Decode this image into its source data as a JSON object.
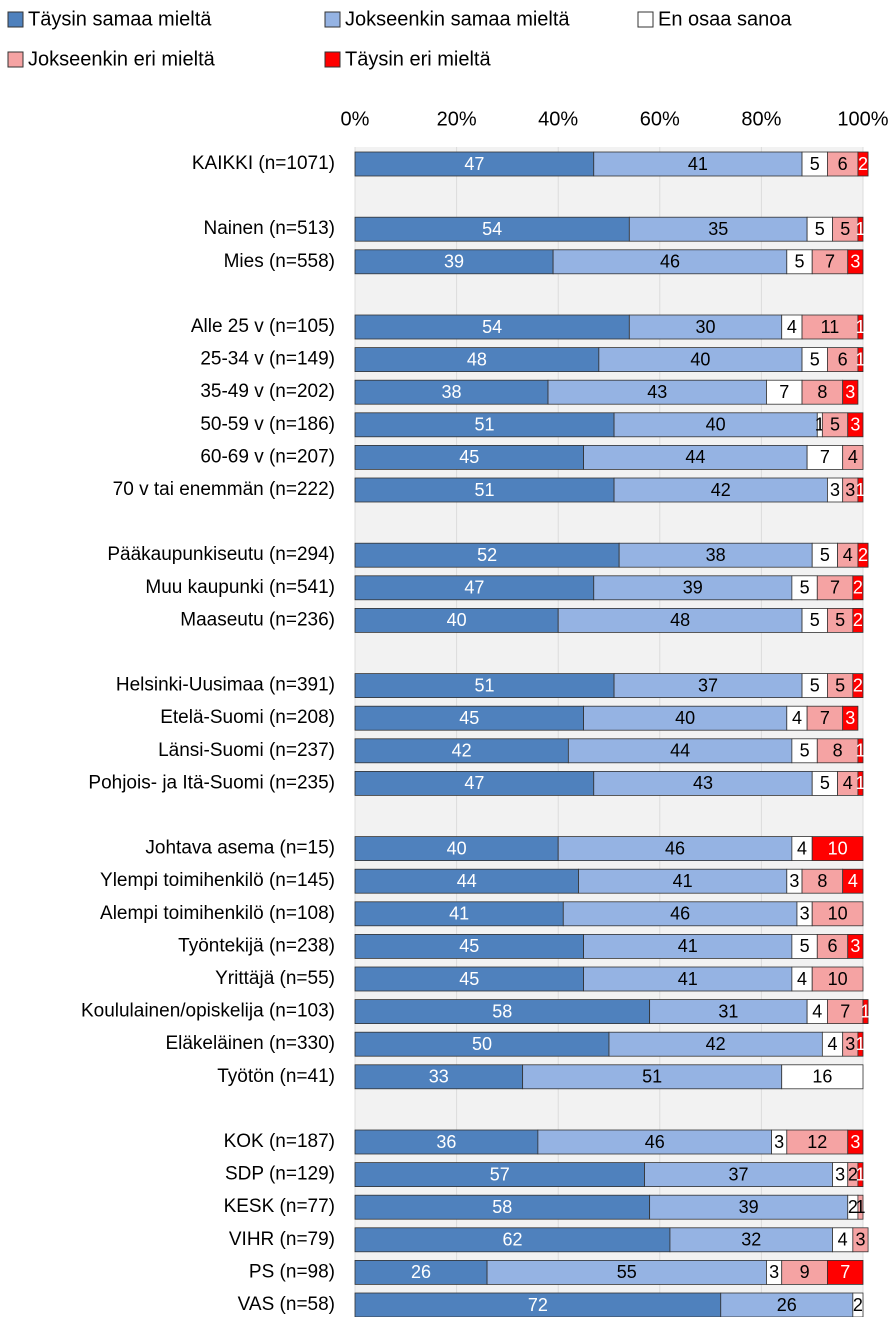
{
  "chart_data": {
    "type": "stacked-bar-horizontal",
    "categories": [
      "KAIKKI (n=1071)",
      null,
      "Nainen (n=513)",
      "Mies (n=558)",
      null,
      "Alle 25 v (n=105)",
      "25-34 v (n=149)",
      "35-49 v (n=202)",
      "50-59 v (n=186)",
      "60-69 v (n=207)",
      "70 v tai enemmän (n=222)",
      null,
      "Pääkaupunkiseutu (n=294)",
      "Muu kaupunki (n=541)",
      "Maaseutu (n=236)",
      null,
      "Helsinki-Uusimaa (n=391)",
      "Etelä-Suomi (n=208)",
      "Länsi-Suomi (n=237)",
      "Pohjois- ja Itä-Suomi (n=235)",
      null,
      "Johtava asema (n=15)",
      "Ylempi toimihenkilö (n=145)",
      "Alempi toimihenkilö (n=108)",
      "Työntekijä (n=238)",
      "Yrittäjä (n=55)",
      "Koululainen/opiskelija (n=103)",
      "Eläkeläinen (n=330)",
      "Työtön (n=41)",
      null,
      "KOK (n=187)",
      "SDP (n=129)",
      "KESK (n=77)",
      "VIHR (n=79)",
      "PS (n=98)",
      "VAS (n=58)"
    ],
    "series": [
      {
        "name": "Täysin samaa mieltä",
        "color": "#4f81bd",
        "values": [
          47,
          null,
          54,
          39,
          null,
          54,
          48,
          38,
          51,
          45,
          51,
          null,
          52,
          47,
          40,
          null,
          51,
          45,
          42,
          47,
          null,
          40,
          44,
          41,
          45,
          45,
          58,
          50,
          33,
          null,
          36,
          57,
          58,
          62,
          26,
          72
        ]
      },
      {
        "name": "Jokseenkin samaa mieltä",
        "color": "#95b3e3",
        "values": [
          41,
          null,
          35,
          46,
          null,
          30,
          40,
          43,
          40,
          44,
          42,
          null,
          38,
          39,
          48,
          null,
          37,
          40,
          44,
          43,
          null,
          46,
          41,
          46,
          41,
          41,
          31,
          42,
          51,
          null,
          46,
          37,
          39,
          32,
          55,
          26
        ]
      },
      {
        "name": "En osaa sanoa",
        "color": "#ffffff",
        "values": [
          5,
          null,
          5,
          5,
          null,
          4,
          5,
          7,
          1,
          7,
          3,
          null,
          5,
          5,
          5,
          null,
          5,
          4,
          5,
          5,
          null,
          4,
          3,
          3,
          5,
          4,
          4,
          4,
          16,
          null,
          3,
          3,
          2,
          4,
          3,
          2
        ]
      },
      {
        "name": "Jokseenkin eri mieltä",
        "color": "#f5a3a3",
        "values": [
          6,
          null,
          5,
          7,
          null,
          11,
          6,
          8,
          5,
          4,
          3,
          null,
          4,
          7,
          5,
          null,
          5,
          7,
          8,
          4,
          null,
          0,
          8,
          10,
          6,
          10,
          7,
          3,
          0,
          null,
          12,
          2,
          1,
          3,
          9,
          0
        ]
      },
      {
        "name": "Täysin eri mieltä",
        "color": "#ff0000",
        "values": [
          2,
          null,
          1,
          3,
          null,
          1,
          1,
          3,
          3,
          0,
          1,
          null,
          2,
          2,
          2,
          null,
          2,
          3,
          1,
          1,
          null,
          10,
          4,
          0,
          3,
          0,
          1,
          1,
          0,
          null,
          3,
          1,
          0,
          0,
          7,
          0
        ]
      }
    ],
    "xlim": [
      0,
      100
    ],
    "xticks": [
      {
        "value": 0,
        "label": "0%"
      },
      {
        "value": 20,
        "label": "20%"
      },
      {
        "value": 40,
        "label": "40%"
      },
      {
        "value": 60,
        "label": "60%"
      },
      {
        "value": 80,
        "label": "80%"
      },
      {
        "value": 100,
        "label": "100%"
      }
    ],
    "grid": true
  }
}
